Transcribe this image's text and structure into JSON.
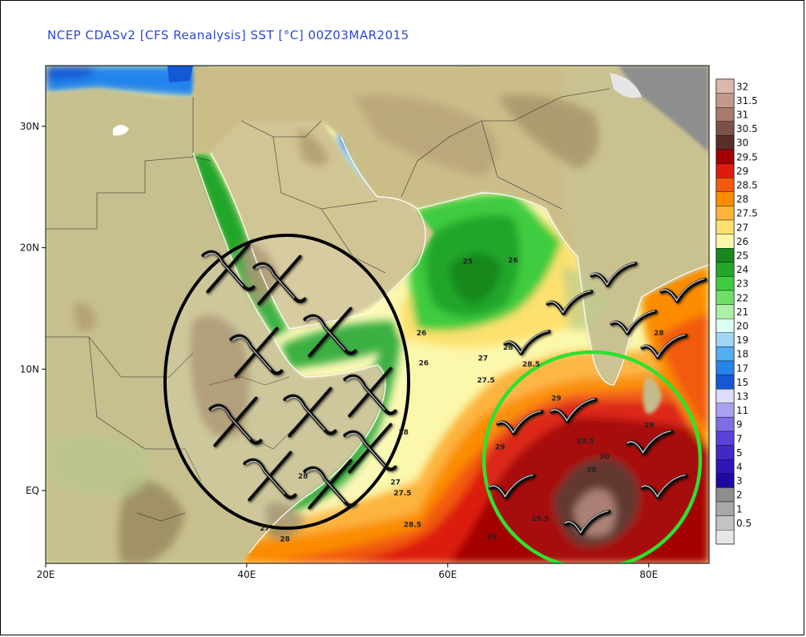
{
  "title": "NCEP CDASv2 [CFS Reanalysis] SST [°C] 00Z03MAR2015",
  "map": {
    "lon_range": [
      20,
      86
    ],
    "lat_range": [
      -6,
      35
    ],
    "x_ticks": [
      {
        "lon": 20,
        "label": "20E"
      },
      {
        "lon": 40,
        "label": "40E"
      },
      {
        "lon": 60,
        "label": "60E"
      },
      {
        "lon": 80,
        "label": "80E"
      }
    ],
    "y_ticks": [
      {
        "lat": 30,
        "label": "30N"
      },
      {
        "lat": 20,
        "label": "20N"
      },
      {
        "lat": 10,
        "label": "10N"
      },
      {
        "lat": 0,
        "label": "EQ"
      }
    ],
    "colors": {
      "land": "#cdbf8c",
      "land_high": "#a9946a",
      "land_low": "#c7cc96",
      "highlight_black": "#000000",
      "highlight_green": "#2fe02f"
    }
  },
  "sst_labels": [
    {
      "text": "25",
      "lon": 62.0,
      "lat": 18.7
    },
    {
      "text": "26",
      "lon": 66.5,
      "lat": 18.8
    },
    {
      "text": "26",
      "lon": 57.4,
      "lat": 12.8
    },
    {
      "text": "26",
      "lon": 57.6,
      "lat": 10.3
    },
    {
      "text": "27",
      "lon": 63.5,
      "lat": 10.7
    },
    {
      "text": "28",
      "lon": 66.0,
      "lat": 11.6
    },
    {
      "text": "28.5",
      "lon": 68.3,
      "lat": 10.2
    },
    {
      "text": "27.5",
      "lon": 63.8,
      "lat": 8.9
    },
    {
      "text": "28",
      "lon": 81.0,
      "lat": 12.8
    },
    {
      "text": "29",
      "lon": 70.8,
      "lat": 7.4
    },
    {
      "text": "28",
      "lon": 55.6,
      "lat": 4.6
    },
    {
      "text": "29",
      "lon": 65.2,
      "lat": 3.4
    },
    {
      "text": "29.5",
      "lon": 73.7,
      "lat": 3.9
    },
    {
      "text": "30",
      "lon": 75.6,
      "lat": 2.6
    },
    {
      "text": "29",
      "lon": 80.0,
      "lat": 5.2
    },
    {
      "text": "30",
      "lon": 74.3,
      "lat": 1.5
    },
    {
      "text": "27",
      "lon": 54.8,
      "lat": 0.5
    },
    {
      "text": "27.5",
      "lon": 55.5,
      "lat": -0.4
    },
    {
      "text": "28",
      "lon": 45.6,
      "lat": 1.0
    },
    {
      "text": "29.5",
      "lon": 69.2,
      "lat": -2.5
    },
    {
      "text": "28.5",
      "lon": 56.5,
      "lat": -3.0
    },
    {
      "text": "27",
      "lon": 41.8,
      "lat": -3.3
    },
    {
      "text": "28",
      "lon": 43.8,
      "lat": -4.2
    },
    {
      "text": "29",
      "lon": 64.4,
      "lat": -4.0
    }
  ],
  "legend": [
    {
      "value": "32",
      "color": "#dcb8ac"
    },
    {
      "value": "31.5",
      "color": "#c49a8e"
    },
    {
      "value": "31",
      "color": "#a87a6e"
    },
    {
      "value": "30.5",
      "color": "#7d5048"
    },
    {
      "value": "30",
      "color": "#5a2e28"
    },
    {
      "value": "29.5",
      "color": "#a40000"
    },
    {
      "value": "29",
      "color": "#dc1c10"
    },
    {
      "value": "28.5",
      "color": "#f25a0c"
    },
    {
      "value": "28",
      "color": "#fb8c00"
    },
    {
      "value": "27.5",
      "color": "#fcb43c"
    },
    {
      "value": "27",
      "color": "#fde170"
    },
    {
      "value": "26",
      "color": "#fbf7ab"
    },
    {
      "value": "25",
      "color": "#17881e"
    },
    {
      "value": "24",
      "color": "#23a62a"
    },
    {
      "value": "23",
      "color": "#3fcc3f"
    },
    {
      "value": "22",
      "color": "#6ee06a"
    },
    {
      "value": "21",
      "color": "#aaf0a6"
    },
    {
      "value": "20",
      "color": "#dcfcf4"
    },
    {
      "value": "19",
      "color": "#9ed6f4"
    },
    {
      "value": "18",
      "color": "#54aef4"
    },
    {
      "value": "17",
      "color": "#2484ec"
    },
    {
      "value": "15",
      "color": "#1558d6"
    },
    {
      "value": "13",
      "color": "#dcdcfc"
    },
    {
      "value": "11",
      "color": "#aaa0f0"
    },
    {
      "value": "9",
      "color": "#7e6ee6"
    },
    {
      "value": "7",
      "color": "#5c42d8"
    },
    {
      "value": "5",
      "color": "#4428c6"
    },
    {
      "value": "4",
      "color": "#3016b8"
    },
    {
      "value": "3",
      "color": "#1c0aa0"
    },
    {
      "value": "2",
      "color": "#8e8e8e"
    },
    {
      "value": "1",
      "color": "#a8a8a8"
    },
    {
      "value": "0.5",
      "color": "#c4c4c4"
    },
    {
      "value": "",
      "color": "#e6e6e6"
    }
  ]
}
